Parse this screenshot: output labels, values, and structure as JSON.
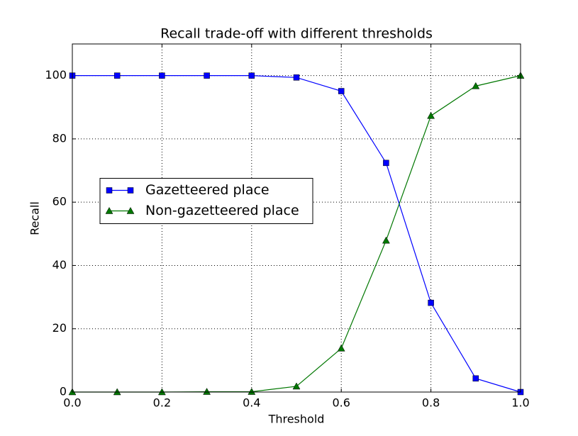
{
  "chart_data": {
    "type": "line",
    "title": "Recall trade-off with different thresholds",
    "x_label": "Threshold",
    "y_label": "Recall",
    "x": [
      0,
      0.1,
      0.2,
      0.3,
      0.4,
      0.5,
      0.6,
      0.7,
      0.8,
      0.9,
      1
    ],
    "series": [
      {
        "name": "Gazetteered place",
        "color": "#0000ff",
        "marker": "square",
        "values": [
          100,
          100,
          100,
          100,
          100,
          99.4,
          95.1,
          72.4,
          28.2,
          4.3,
          0
        ]
      },
      {
        "name": "Non-gazetteered place",
        "color": "#007700",
        "marker": "triangle",
        "values": [
          0,
          0,
          0,
          0.1,
          0.1,
          1.8,
          13.8,
          47.9,
          87.3,
          96.7,
          100
        ]
      }
    ],
    "xlim": [
      0,
      1
    ],
    "xticks": [
      {
        "value": 0,
        "label": "0.0"
      },
      0.2,
      0.4,
      0.6,
      0.8,
      {
        "value": 1,
        "label": "1.0"
      }
    ],
    "ylim": [
      0,
      110
    ],
    "yticks": [
      0,
      20,
      40,
      60,
      80,
      100
    ],
    "grid": true,
    "legend_loc": "center left"
  }
}
